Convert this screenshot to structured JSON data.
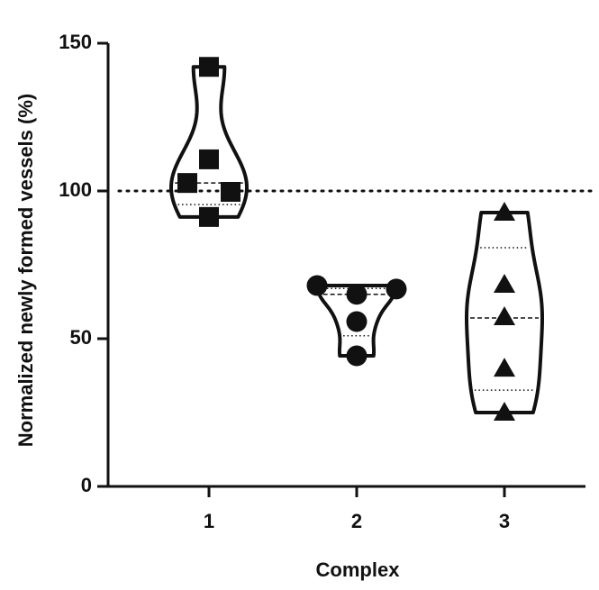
{
  "chart_data": {
    "type": "violin",
    "ylabel": "Normalized newly formed vessels (%)",
    "xlabel": "Complex",
    "categories": [
      "1",
      "2",
      "3"
    ],
    "groups": [
      {
        "marker": "square",
        "values": [
          142,
          110.7,
          102.7,
          99.7,
          91.2
        ],
        "median": 102.7,
        "quartiles": [
          95.4
        ]
      },
      {
        "marker": "circle",
        "values": [
          68,
          65,
          66.8,
          55.8,
          44.2
        ],
        "median": 65,
        "quartiles": [
          51,
          67
        ]
      },
      {
        "marker": "triangle",
        "values": [
          92.7,
          68.3,
          57.3,
          39.9,
          25
        ],
        "median": 57,
        "quartiles": [
          32.6,
          80.8
        ]
      }
    ],
    "refline": 100,
    "color": "#111111",
    "ylim": [
      0,
      150
    ],
    "yticks": [
      0,
      50,
      100,
      150
    ]
  }
}
